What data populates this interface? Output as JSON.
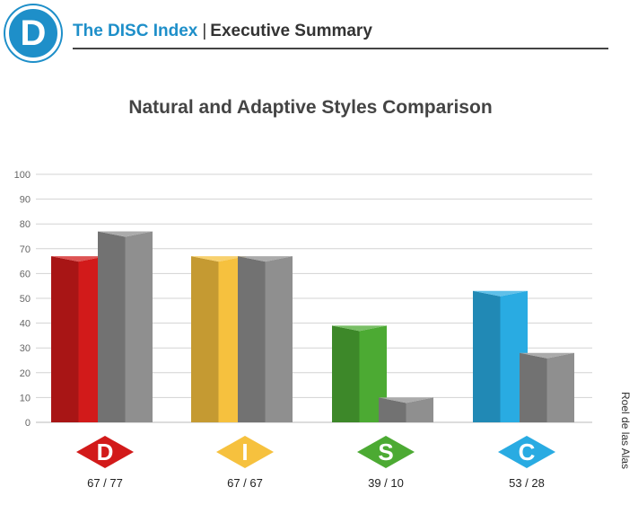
{
  "header": {
    "logo_letter": "D",
    "brand": "The DISC Index",
    "separator": "|",
    "section": "Executive Summary"
  },
  "side_credit": "Roel de las Alas",
  "colors": {
    "brand": "#1e8fc9",
    "D": "#d21a1a",
    "I": "#f6c13e",
    "S": "#4caa33",
    "C": "#29abe2",
    "adaptive": "#8f8f8f"
  },
  "chart_data": {
    "type": "bar",
    "title": "Natural and Adaptive Styles Comparison",
    "xlabel": "",
    "ylabel": "",
    "ylim": [
      0,
      100
    ],
    "yticks": [
      0,
      10,
      20,
      30,
      40,
      50,
      60,
      70,
      80,
      90,
      100
    ],
    "grid": true,
    "categories": [
      "D",
      "I",
      "S",
      "C"
    ],
    "category_labels": [
      "67 / 77",
      "67 / 67",
      "39 / 10",
      "53 / 28"
    ],
    "series": [
      {
        "values": [
          67,
          67,
          39,
          53
        ]
      },
      {
        "values": [
          77,
          67,
          10,
          28
        ]
      }
    ]
  }
}
